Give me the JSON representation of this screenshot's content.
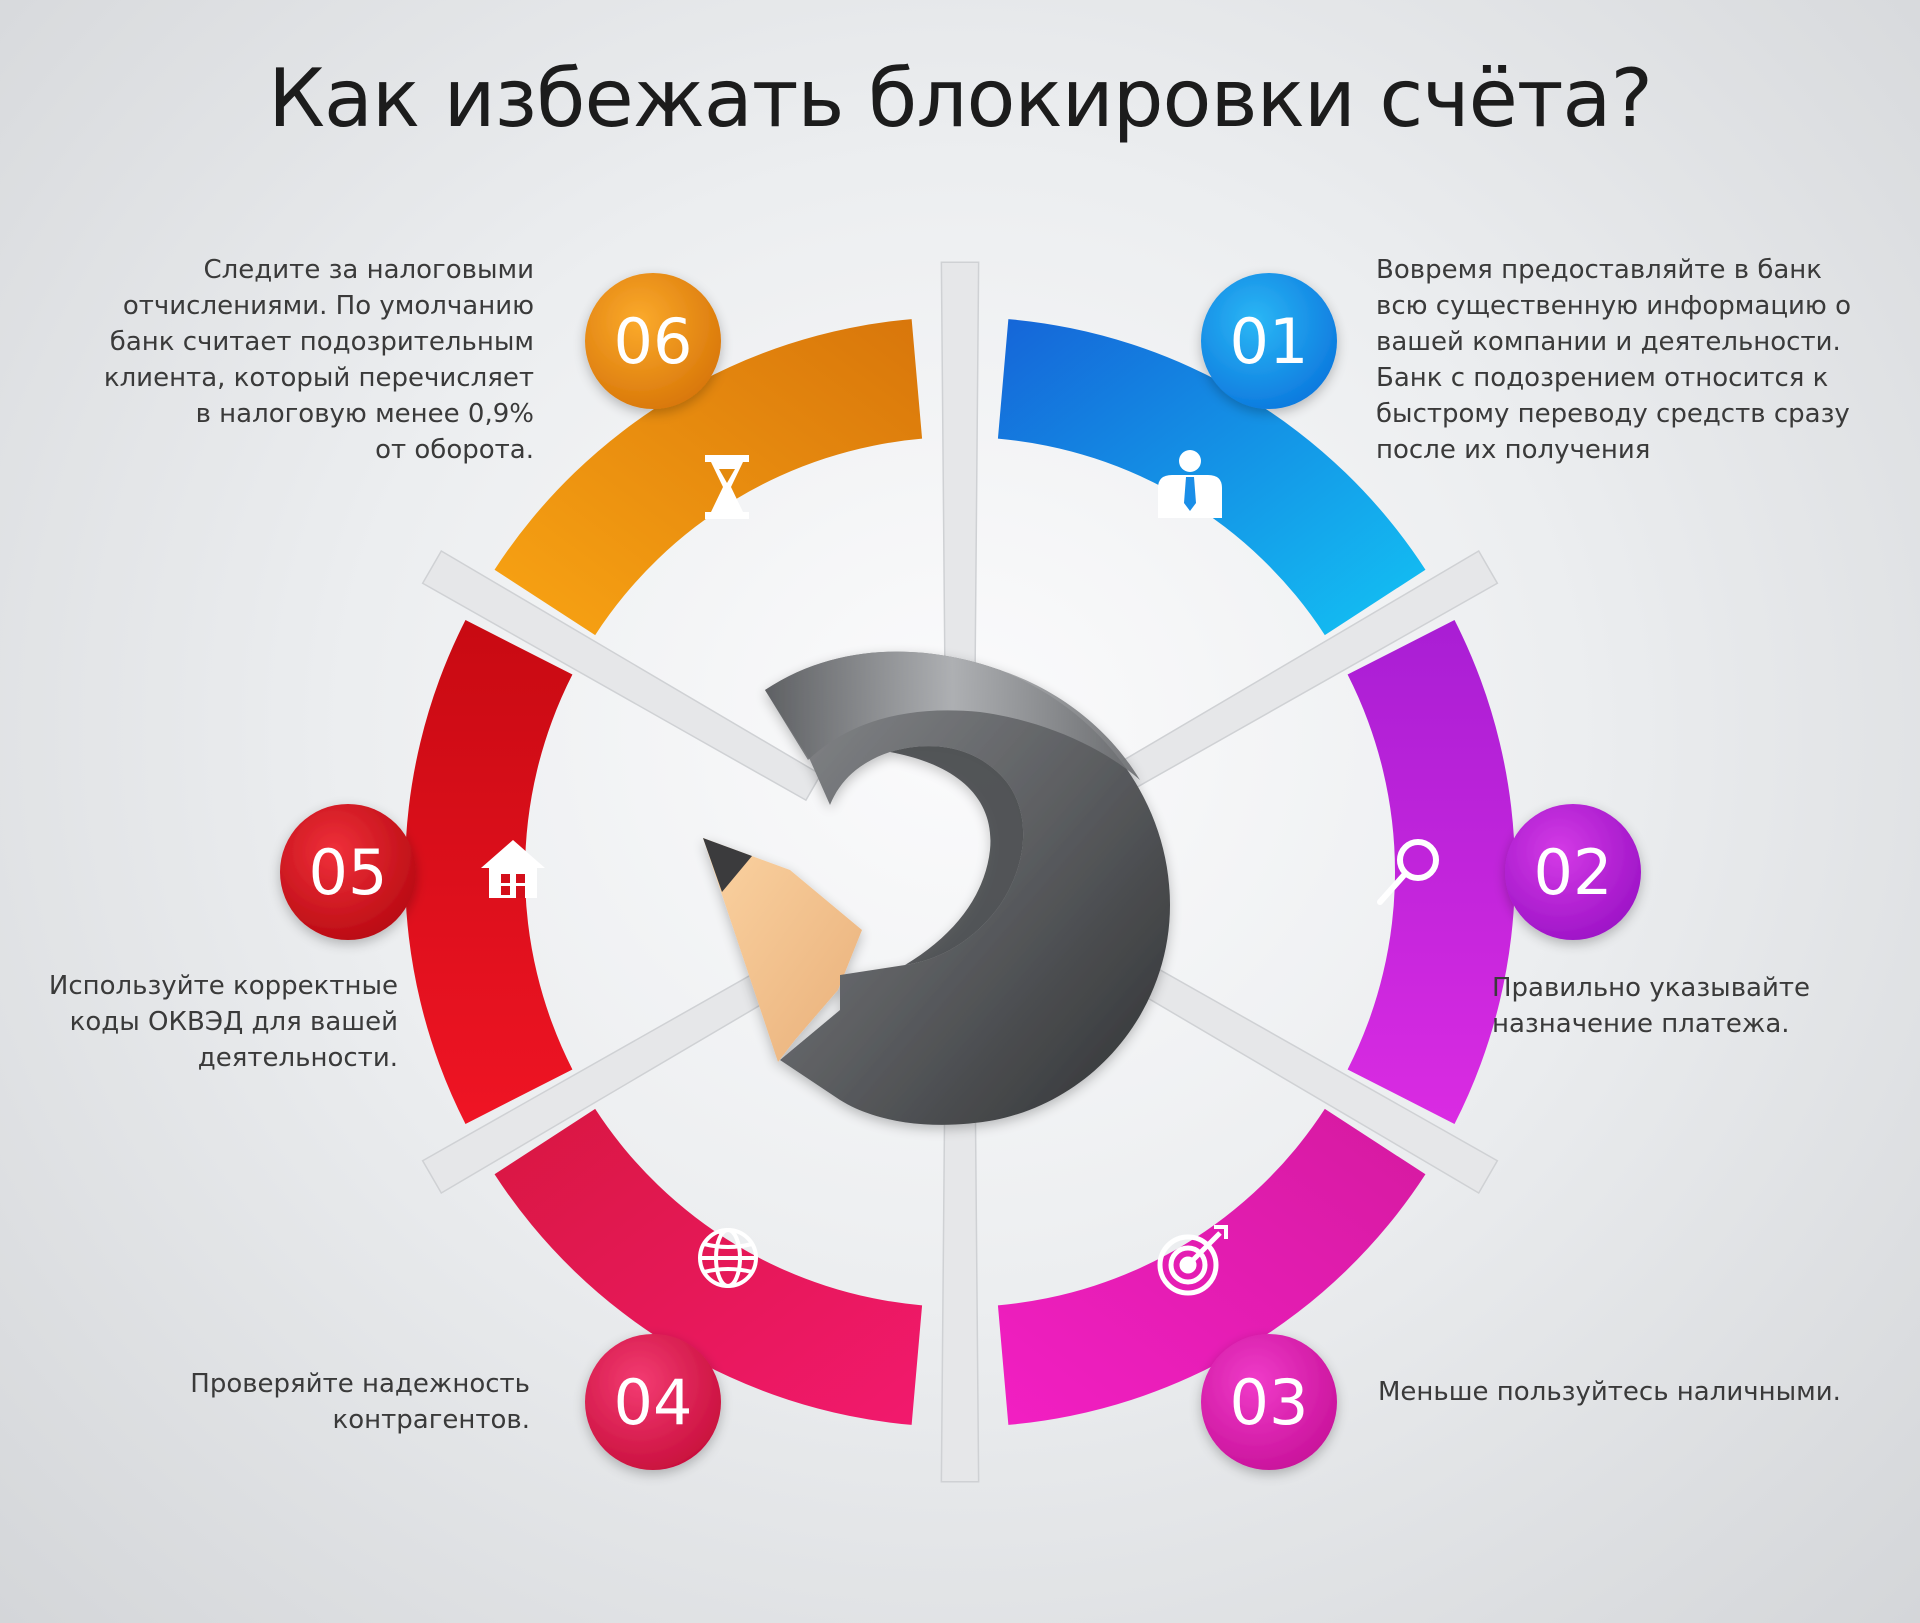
{
  "title": "Как избежать блокировки счёта?",
  "steps": [
    {
      "number": "01",
      "color": "#1aa3ea",
      "icon": "businessman-icon",
      "text": "Вовремя предоставляйте в банк\nвсю существенную информацию о\nвашей компании и деятельности.\nБанк с подозрением относится к\nбыстрому переводу средств сразу\nпосле их получения"
    },
    {
      "number": "02",
      "color": "#c21fd6",
      "icon": "magnifier-icon",
      "text": "Правильно указывайте\nназначение платежа."
    },
    {
      "number": "03",
      "color": "#e21ba8",
      "icon": "target-icon",
      "text": "Меньше пользуйтесь наличными."
    },
    {
      "number": "04",
      "color": "#e0134f",
      "icon": "globe-icon",
      "text": "Проверяйте надежность\nконтрагентов."
    },
    {
      "number": "05",
      "color": "#dd0f1a",
      "icon": "house-icon",
      "text": "Используйте корректные\nкоды ОКВЭД для вашей\nдеятельности."
    },
    {
      "number": "06",
      "color": "#ec8d0c",
      "icon": "hourglass-icon",
      "text": "Следите за налоговыми\nотчислениями. По умолчанию\nбанк считает подозрительным\nклиента, который перечисляет\nв налоговую менее 0,9%\nот оборота."
    }
  ]
}
